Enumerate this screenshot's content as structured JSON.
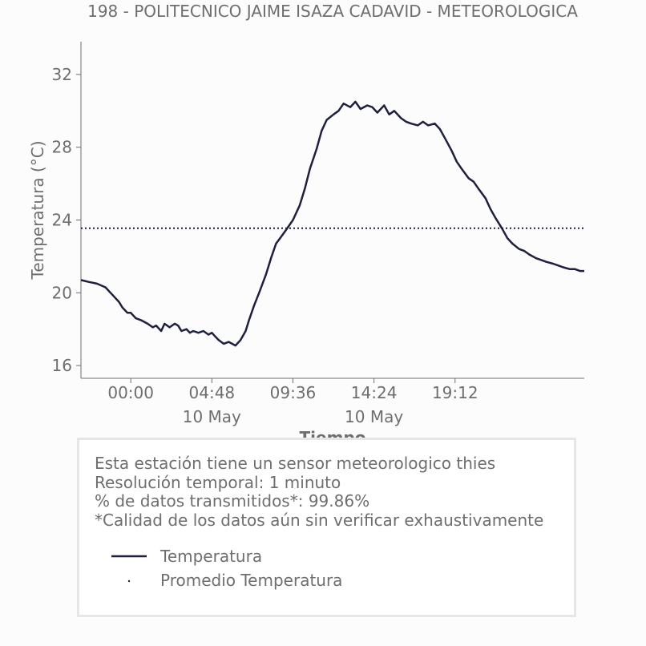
{
  "chart_data": {
    "type": "line",
    "title": "198 - POLITECNICO JAIME ISAZA CADAVID - METEOROLOGICA",
    "xlabel": "Tiempo",
    "ylabel": "Temperatura (°C)",
    "ylim": [
      15.3,
      33.8
    ],
    "xlim_hours": [
      -2.95,
      26.85
    ],
    "yticks": [
      16,
      20,
      24,
      28,
      32
    ],
    "xticks": [
      {
        "hour": 0.0,
        "label": "00:00",
        "sublabel": ""
      },
      {
        "hour": 4.8,
        "label": "04:48",
        "sublabel": "10 May"
      },
      {
        "hour": 9.6,
        "label": "09:36",
        "sublabel": ""
      },
      {
        "hour": 14.4,
        "label": "14:24",
        "sublabel": "10 May"
      },
      {
        "hour": 19.2,
        "label": "19:12",
        "sublabel": ""
      }
    ],
    "grid": false,
    "series": [
      {
        "name": "Temperatura",
        "color": "#1f1f3f",
        "style": "solid",
        "x_hours": [
          -2.95,
          -2.5,
          -2.0,
          -1.5,
          -1.2,
          -1.0,
          -0.7,
          -0.5,
          -0.2,
          0.0,
          0.3,
          0.6,
          1.0,
          1.3,
          1.5,
          1.8,
          2.0,
          2.3,
          2.6,
          2.8,
          3.0,
          3.3,
          3.5,
          3.7,
          4.0,
          4.3,
          4.6,
          4.8,
          5.0,
          5.2,
          5.5,
          5.8,
          6.0,
          6.2,
          6.5,
          6.8,
          7.0,
          7.3,
          7.6,
          8.0,
          8.3,
          8.6,
          9.0,
          9.3,
          9.6,
          10.0,
          10.3,
          10.6,
          11.0,
          11.3,
          11.6,
          12.0,
          12.3,
          12.6,
          13.0,
          13.3,
          13.6,
          14.0,
          14.3,
          14.6,
          15.0,
          15.3,
          15.6,
          16.0,
          16.3,
          16.6,
          17.0,
          17.3,
          17.6,
          18.0,
          18.3,
          18.6,
          19.0,
          19.3,
          19.6,
          20.0,
          20.3,
          20.6,
          21.0,
          21.3,
          21.6,
          22.0,
          22.3,
          22.6,
          23.0,
          23.3,
          23.6,
          24.0,
          24.3,
          24.6,
          25.0,
          25.3,
          25.6,
          26.0,
          26.3,
          26.6,
          26.85
        ],
        "values": [
          20.7,
          20.6,
          20.5,
          20.3,
          20.0,
          19.8,
          19.5,
          19.2,
          18.9,
          18.9,
          18.6,
          18.5,
          18.3,
          18.1,
          18.2,
          17.9,
          18.3,
          18.1,
          18.3,
          18.2,
          17.9,
          18.0,
          17.8,
          17.9,
          17.8,
          17.9,
          17.7,
          17.8,
          17.6,
          17.4,
          17.2,
          17.3,
          17.2,
          17.1,
          17.4,
          17.9,
          18.5,
          19.3,
          20.0,
          21.0,
          21.9,
          22.7,
          23.2,
          23.6,
          24.0,
          24.8,
          25.7,
          26.8,
          27.9,
          28.9,
          29.5,
          29.8,
          30.0,
          30.4,
          30.2,
          30.5,
          30.1,
          30.3,
          30.2,
          29.9,
          30.3,
          29.8,
          30.0,
          29.6,
          29.4,
          29.3,
          29.2,
          29.4,
          29.2,
          29.3,
          29.0,
          28.5,
          27.8,
          27.2,
          26.8,
          26.3,
          26.1,
          25.7,
          25.2,
          24.6,
          24.1,
          23.5,
          23.0,
          22.7,
          22.4,
          22.3,
          22.1,
          21.9,
          21.8,
          21.7,
          21.6,
          21.5,
          21.4,
          21.3,
          21.3,
          21.2,
          21.2
        ]
      },
      {
        "name": "Promedio Temperatura",
        "color": "#1f1f3f",
        "style": "dotted",
        "value": 23.55
      }
    ]
  },
  "info": {
    "lines": [
      "Esta estación tiene un sensor meteorologico thies",
      "Resolución temporal: 1 minuto",
      "% de datos transmitidos*: 99.86%",
      "*Calidad de los datos aún sin verificar exhaustivamente"
    ]
  },
  "legend": {
    "items": [
      "Temperatura",
      "Promedio Temperatura"
    ]
  }
}
